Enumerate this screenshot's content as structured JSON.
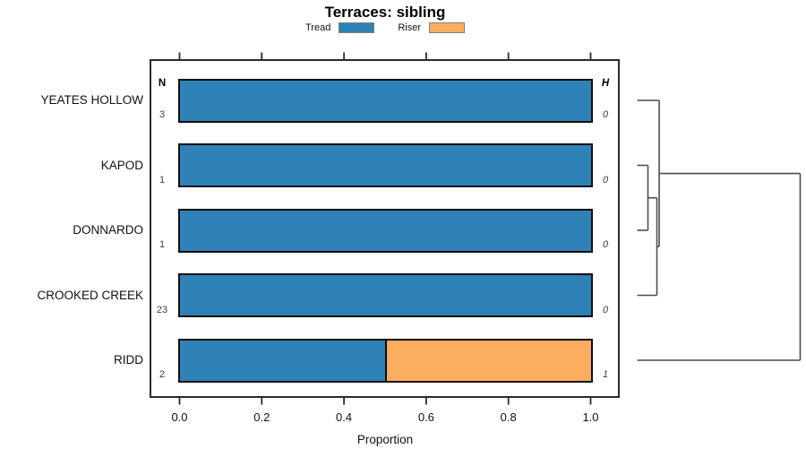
{
  "title": "Terraces: sibling",
  "legend": {
    "items": [
      {
        "label": "Tread",
        "color": "#2E82B8"
      },
      {
        "label": "Riser",
        "color": "#FCAD60"
      }
    ]
  },
  "columns": {
    "left_header": "N",
    "right_header": "H"
  },
  "axis": {
    "xlabel": "Proportion"
  },
  "chart_data": {
    "type": "bar",
    "orientation": "horizontal",
    "stacked": true,
    "title": "Terraces: sibling",
    "xlabel": "Proportion",
    "ylabel": "",
    "xlim": [
      0,
      1
    ],
    "grid": false,
    "legend_position": "top",
    "x_ticks": [
      {
        "value": 0.0,
        "label": "0.0"
      },
      {
        "value": 0.2,
        "label": "0.2"
      },
      {
        "value": 0.4,
        "label": "0.4"
      },
      {
        "value": 0.6,
        "label": "0.6"
      },
      {
        "value": 0.8,
        "label": "0.8"
      },
      {
        "value": 1.0,
        "label": "1.0"
      }
    ],
    "categories": [
      "YEATES HOLLOW",
      "KAPOD",
      "DONNARDO",
      "CROOKED CREEK",
      "RIDD"
    ],
    "series": [
      {
        "name": "Tread",
        "color": "#2E82B8",
        "values": [
          1.0,
          1.0,
          1.0,
          1.0,
          0.5
        ]
      },
      {
        "name": "Riser",
        "color": "#FCAD60",
        "values": [
          0.0,
          0.0,
          0.0,
          0.0,
          0.5
        ]
      }
    ],
    "n_counts": [
      "3",
      "1",
      "1",
      "23",
      "2"
    ],
    "h_values": [
      "0",
      "0",
      "0",
      "0",
      "1"
    ],
    "dendrogram": {
      "leaves": [
        "YEATES HOLLOW",
        "KAPOD",
        "DONNARDO",
        "CROOKED CREEK",
        "RIDD"
      ],
      "merges": [
        {
          "id": "m0",
          "a": "KAPOD",
          "b": "DONNARDO",
          "height": 0.066
        },
        {
          "id": "m1",
          "a": "m0",
          "b": "CROOKED CREEK",
          "height": 0.121
        },
        {
          "id": "m2",
          "a": "YEATES HOLLOW",
          "b": "m1",
          "height": 0.135
        },
        {
          "id": "m3",
          "a": "m2",
          "b": "RIDD",
          "height": 1.0
        }
      ]
    }
  }
}
